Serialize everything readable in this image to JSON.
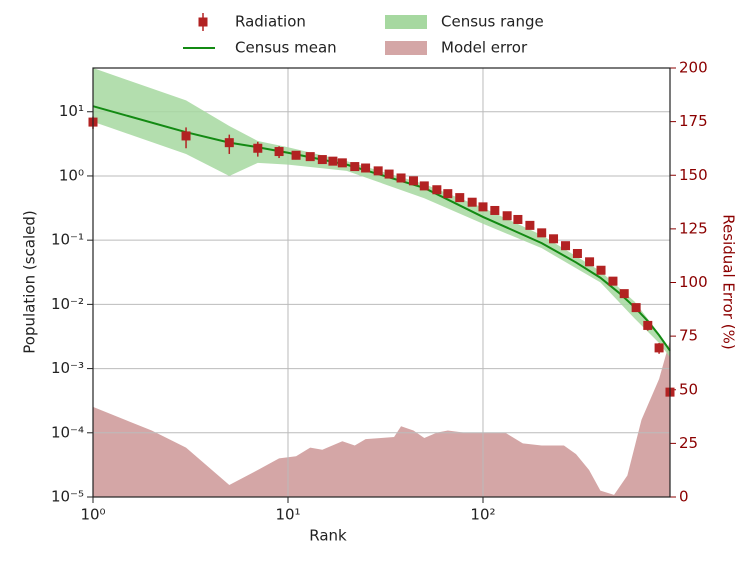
{
  "chart_data": {
    "type": "line",
    "xlabel": "Rank",
    "ylabel": "Population (scaled)",
    "y2label": "Residual Error (%)",
    "xscale": "log",
    "yscale": "log",
    "grid": true,
    "xlim": [
      1,
      910
    ],
    "ylim": [
      1e-05,
      48
    ],
    "y2lim": [
      0,
      200
    ],
    "xticks": [
      {
        "value": 1,
        "label": "10⁰"
      },
      {
        "value": 10,
        "label": "10¹"
      },
      {
        "value": 100,
        "label": "10²"
      }
    ],
    "yticks": [
      {
        "value": 1e-05,
        "label": "10⁻⁵"
      },
      {
        "value": 0.0001,
        "label": "10⁻⁴"
      },
      {
        "value": 0.001,
        "label": "10⁻³"
      },
      {
        "value": 0.01,
        "label": "10⁻²"
      },
      {
        "value": 0.1,
        "label": "10⁻¹"
      },
      {
        "value": 1,
        "label": "10⁰"
      },
      {
        "value": 10,
        "label": "10¹"
      }
    ],
    "y2ticks": [
      0,
      25,
      50,
      75,
      100,
      125,
      150,
      175,
      200
    ],
    "y2color": "#8b0000",
    "series": [
      {
        "name": "Radiation",
        "type": "errorbar",
        "color": "#b22222",
        "x": [
          1,
          3,
          5,
          7,
          9,
          11,
          13,
          15,
          17,
          19,
          22,
          25,
          29,
          33,
          38,
          44,
          50,
          58,
          66,
          76,
          88,
          100,
          115,
          133,
          151,
          174,
          200,
          230,
          265,
          305,
          352,
          403,
          464,
          530,
          610,
          700,
          800,
          910
        ],
        "values": [
          6.9,
          4.2,
          3.3,
          2.7,
          2.4,
          2.1,
          2.0,
          1.8,
          1.7,
          1.6,
          1.4,
          1.33,
          1.2,
          1.07,
          0.93,
          0.84,
          0.7,
          0.61,
          0.53,
          0.46,
          0.39,
          0.33,
          0.29,
          0.24,
          0.21,
          0.17,
          0.13,
          0.105,
          0.082,
          0.062,
          0.046,
          0.034,
          0.023,
          0.0147,
          0.0089,
          0.0047,
          0.0021,
          0.00043
        ],
        "errors": [
          1.5,
          1.5,
          1.1,
          0.7,
          0.5,
          0.3,
          0.2,
          0.18,
          0.15,
          0.12,
          0.1,
          0.09,
          0.08,
          0.07,
          0.06,
          0.05,
          0.04,
          0.035,
          0.03,
          0.025,
          0.02,
          0.018,
          0.015,
          0.012,
          0.011,
          0.009,
          0.007,
          0.006,
          0.005,
          0.004,
          0.003,
          0.0025,
          0.002,
          0.0015,
          0.0012,
          0.0008,
          0.0004,
          6e-05
        ]
      },
      {
        "name": "Census mean",
        "type": "line",
        "color": "#138a13",
        "x": [
          1,
          3,
          5,
          7,
          10,
          20,
          50,
          100,
          200,
          300,
          400,
          500,
          600,
          700,
          800,
          910
        ],
        "values": [
          12.2,
          4.8,
          3.3,
          2.8,
          2.3,
          1.5,
          0.65,
          0.23,
          0.09,
          0.045,
          0.026,
          0.015,
          0.009,
          0.0055,
          0.0033,
          0.0019
        ]
      },
      {
        "name": "Census range",
        "type": "band",
        "color": "#a6d8a0",
        "x": [
          1,
          3,
          5,
          7,
          10,
          20,
          50,
          100,
          200,
          400,
          600,
          800,
          910
        ],
        "low": [
          7,
          2.2,
          1.0,
          1.6,
          1.5,
          1.2,
          0.45,
          0.18,
          0.075,
          0.022,
          0.006,
          0.0025,
          0.0015
        ],
        "high": [
          48,
          15,
          6,
          3.5,
          2.8,
          1.7,
          0.75,
          0.32,
          0.12,
          0.033,
          0.011,
          0.0035,
          0.002
        ]
      },
      {
        "name": "Model error",
        "type": "area",
        "color": "#d4a6a6",
        "axis": "y2",
        "x": [
          1,
          2,
          3,
          5,
          7,
          9,
          11,
          13,
          15,
          19,
          22,
          25,
          30,
          35,
          38,
          44,
          50,
          58,
          66,
          80,
          100,
          130,
          160,
          200,
          260,
          300,
          350,
          400,
          470,
          550,
          650,
          800,
          910
        ],
        "values": [
          42,
          31,
          23,
          5.6,
          12.6,
          18,
          19,
          23,
          22,
          26,
          24,
          27,
          27.5,
          28,
          33,
          31,
          27.5,
          30,
          31,
          30,
          30,
          30,
          25,
          24,
          24,
          20,
          12.6,
          3,
          1,
          10,
          36,
          55,
          73
        ]
      }
    ]
  }
}
